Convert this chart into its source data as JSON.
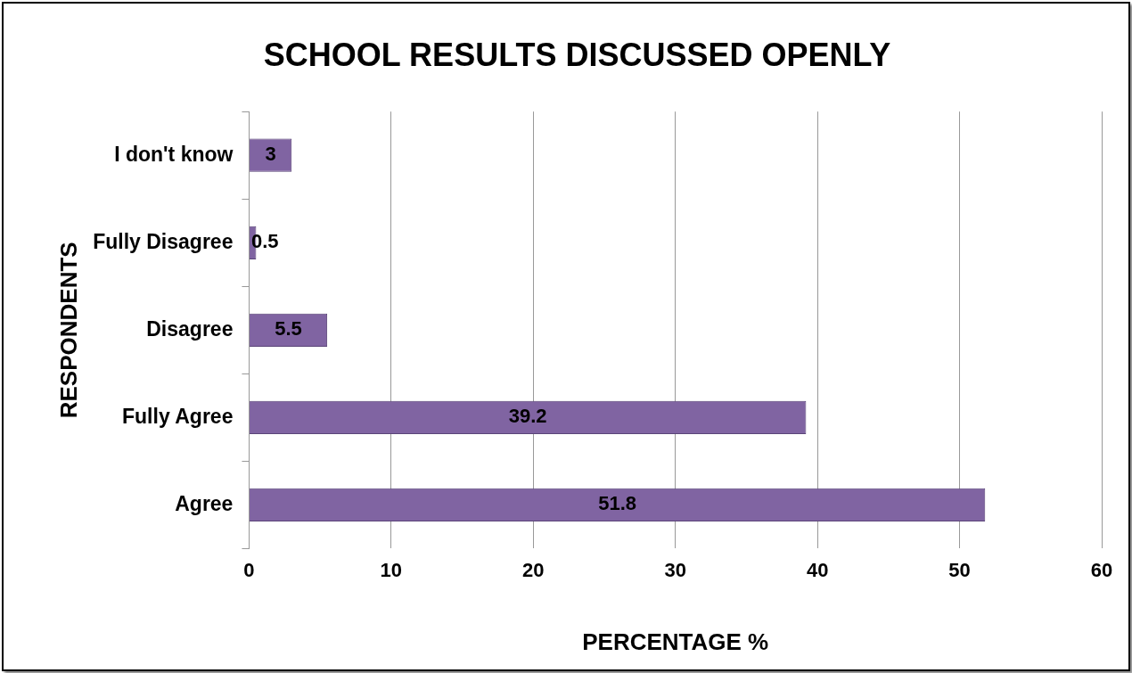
{
  "chart_data": {
    "type": "bar",
    "orientation": "horizontal",
    "title": "SCHOOL RESULTS DISCUSSED OPENLY",
    "xlabel": "PERCENTAGE %",
    "ylabel": "RESPONDENTS",
    "categories": [
      "I don't know",
      "Fully Disagree",
      "Disagree",
      "Fully Agree",
      "Agree"
    ],
    "values": [
      3,
      0.5,
      5.5,
      39.2,
      51.8
    ],
    "color": "#8064a2",
    "xlim": [
      0,
      60
    ],
    "xticks": [
      0,
      10,
      20,
      30,
      40,
      50,
      60
    ],
    "grid": "x",
    "legend": false,
    "data_labels": true
  }
}
